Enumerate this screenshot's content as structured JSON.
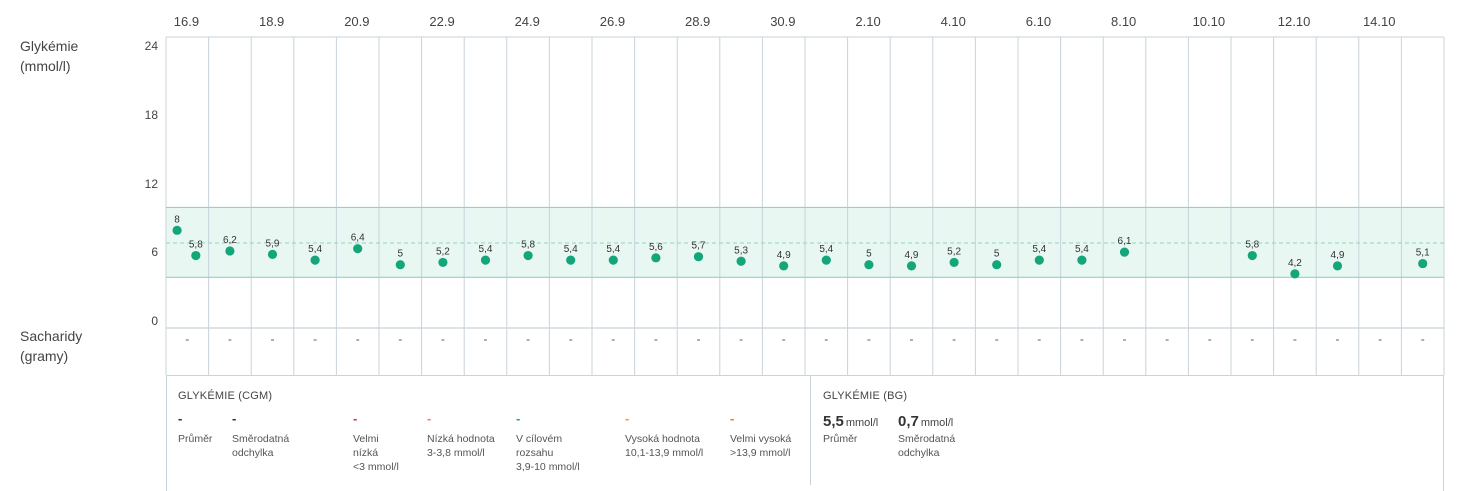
{
  "chart_data": {
    "type": "scatter",
    "x_ticks": [
      "16.9",
      "18.9",
      "20.9",
      "22.9",
      "24.9",
      "26.9",
      "28.9",
      "30.9",
      "2.10",
      "4.10",
      "6.10",
      "8.10",
      "10.10",
      "12.10",
      "14.10"
    ],
    "ylabel": "Glykémie (mmol/l)",
    "ylabel_lines": [
      "Glykémie",
      "(mmol/l)"
    ],
    "y_ticks": [
      "24",
      "18",
      "12",
      "6",
      "0"
    ],
    "ylim": [
      0,
      24
    ],
    "target_range": [
      3.9,
      10
    ],
    "reference_line": 6.9,
    "points": [
      {
        "day": 0,
        "y": 8,
        "label": "8"
      },
      {
        "day": 0.2,
        "y": 5.8,
        "label": "5,8"
      },
      {
        "day": 1,
        "y": 6.2,
        "label": "6,2"
      },
      {
        "day": 2,
        "y": 5.9,
        "label": "5,9"
      },
      {
        "day": 3,
        "y": 5.4,
        "label": "5,4"
      },
      {
        "day": 4,
        "y": 6.4,
        "label": "6,4"
      },
      {
        "day": 5,
        "y": 5,
        "label": "5"
      },
      {
        "day": 6,
        "y": 5.2,
        "label": "5,2"
      },
      {
        "day": 7,
        "y": 5.4,
        "label": "5,4"
      },
      {
        "day": 8,
        "y": 5.8,
        "label": "5,8"
      },
      {
        "day": 9,
        "y": 5.4,
        "label": "5,4"
      },
      {
        "day": 10,
        "y": 5.4,
        "label": "5,4"
      },
      {
        "day": 11,
        "y": 5.6,
        "label": "5,6"
      },
      {
        "day": 12,
        "y": 5.7,
        "label": "5,7"
      },
      {
        "day": 13,
        "y": 5.3,
        "label": "5,3"
      },
      {
        "day": 14,
        "y": 4.9,
        "label": "4,9"
      },
      {
        "day": 15,
        "y": 5.4,
        "label": "5,4"
      },
      {
        "day": 16,
        "y": 5,
        "label": "5"
      },
      {
        "day": 17,
        "y": 4.9,
        "label": "4,9"
      },
      {
        "day": 18,
        "y": 5.2,
        "label": "5,2"
      },
      {
        "day": 19,
        "y": 5,
        "label": "5"
      },
      {
        "day": 20,
        "y": 5.4,
        "label": "5,4"
      },
      {
        "day": 21,
        "y": 5.4,
        "label": "5,4"
      },
      {
        "day": 22,
        "y": 6.1,
        "label": "6,1"
      },
      {
        "day": 25,
        "y": 5.8,
        "label": "5,8"
      },
      {
        "day": 26,
        "y": 4.2,
        "label": "4,2"
      },
      {
        "day": 27,
        "y": 4.9,
        "label": "4,9"
      },
      {
        "day": 29,
        "y": 5.1,
        "label": "5,1"
      }
    ]
  },
  "carbs": {
    "label_lines": [
      "Sacharidy",
      "(gramy)"
    ],
    "values": [
      "-",
      "-",
      "-",
      "-",
      "-",
      "-",
      "-",
      "-",
      "-",
      "-",
      "-",
      "-",
      "-",
      "-",
      "-",
      "-",
      "-",
      "-",
      "-",
      "-",
      "-",
      "-",
      "-",
      "-",
      "-",
      "-",
      "-",
      "-",
      "-",
      "-"
    ]
  },
  "legend": {
    "cgm": {
      "title": "GLYKÉMIE (CGM)",
      "items": [
        {
          "swatch": "-",
          "color_class": "blk",
          "lines": [
            "Průměr"
          ]
        },
        {
          "swatch": "-",
          "color_class": "blk",
          "lines": [
            "Směrodatná",
            "odchylka"
          ]
        },
        {
          "swatch": "-",
          "color_class": "red",
          "lines": [
            "Velmi",
            "nízká",
            "<3 mmol/l"
          ]
        },
        {
          "swatch": "-",
          "color_class": "salmon",
          "lines": [
            "Nízká hodnota",
            "3-3,8 mmol/l"
          ]
        },
        {
          "swatch": "-",
          "color_class": "green",
          "lines": [
            "V cílovém",
            "rozsahu",
            "3,9-10 mmol/l"
          ]
        },
        {
          "swatch": "-",
          "color_class": "orange",
          "lines": [
            "Vysoká hodnota",
            "10,1-13,9 mmol/l"
          ]
        },
        {
          "swatch": "-",
          "color_class": "orange2",
          "lines": [
            "Velmi vysoká",
            ">13,9 mmol/l"
          ]
        }
      ]
    },
    "bg": {
      "title": "GLYKÉMIE (BG)",
      "mean_value": "5,5",
      "mean_unit": "mmol/l",
      "mean_label": "Průměr",
      "sd_value": "0,7",
      "sd_unit": "mmol/l",
      "sd_label_lines": [
        "Směrodatná",
        "odchylka"
      ]
    }
  },
  "colors": {
    "point": "#14a57a",
    "band_fill": "#e8f7f2",
    "band_line": "#8fd6bf",
    "grid": "#c8d3da"
  }
}
